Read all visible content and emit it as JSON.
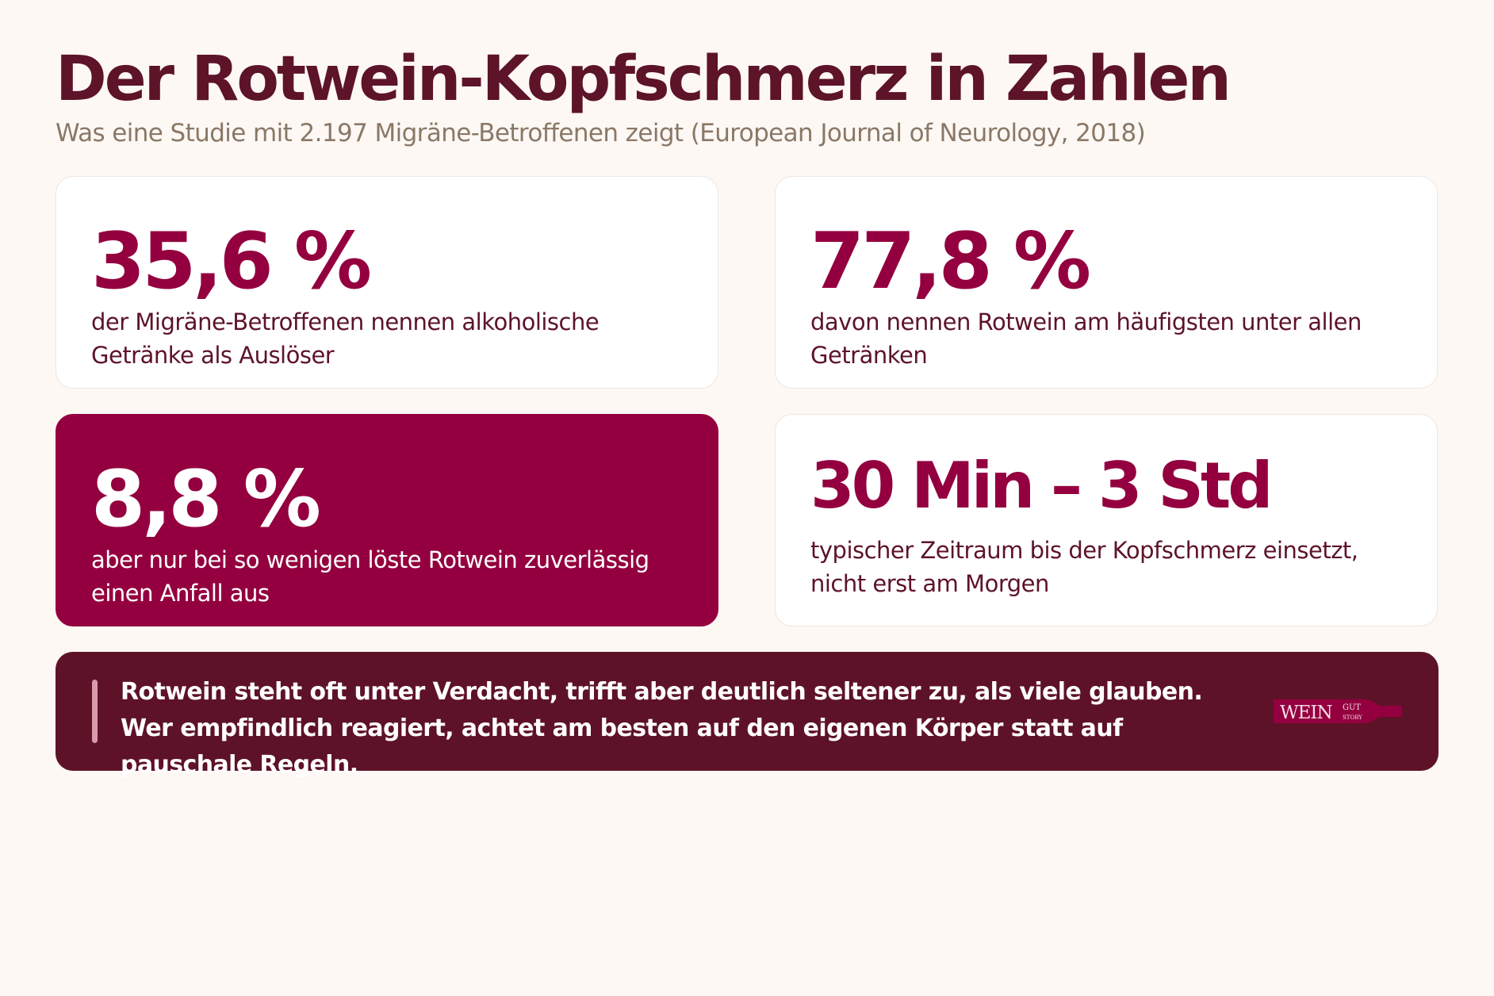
{
  "header": {
    "title": "Der Rotwein-Kopfschmerz in Zahlen",
    "subtitle": "Was eine Studie mit 2.197 Migräne-Betroffenen zeigt (European Journal of Neurology, 2018)"
  },
  "cards": [
    {
      "stat": "35,6 %",
      "description": "der Migräne-Betroffenen nennen alkoholische Getränke als Auslöser"
    },
    {
      "stat": "77,8 %",
      "description": "davon nennen Rotwein am häufigsten unter allen Getränken"
    },
    {
      "stat": "8,8 %",
      "description": "aber nur bei so wenigen löste Rotwein zuverlässig einen Anfall aus"
    },
    {
      "stat": "30 Min – 3 Std",
      "description": "typischer Zeitraum bis der Kopfschmerz einsetzt, nicht erst am Morgen"
    }
  ],
  "banner": {
    "text": "Rotwein steht oft unter Verdacht, trifft aber deutlich seltener zu, als viele glauben. Wer empfindlich reagiert, achtet am besten auf den eigenen Körper statt auf pauschale Regeln."
  },
  "logo": {
    "main": "WEIN",
    "top": "GUT",
    "bottom": "STORY"
  },
  "colors": {
    "background": "#fdf8f4",
    "title": "#5d1328",
    "accent": "#94003f",
    "banner": "#5e1228",
    "subtitle": "#8a7867"
  }
}
